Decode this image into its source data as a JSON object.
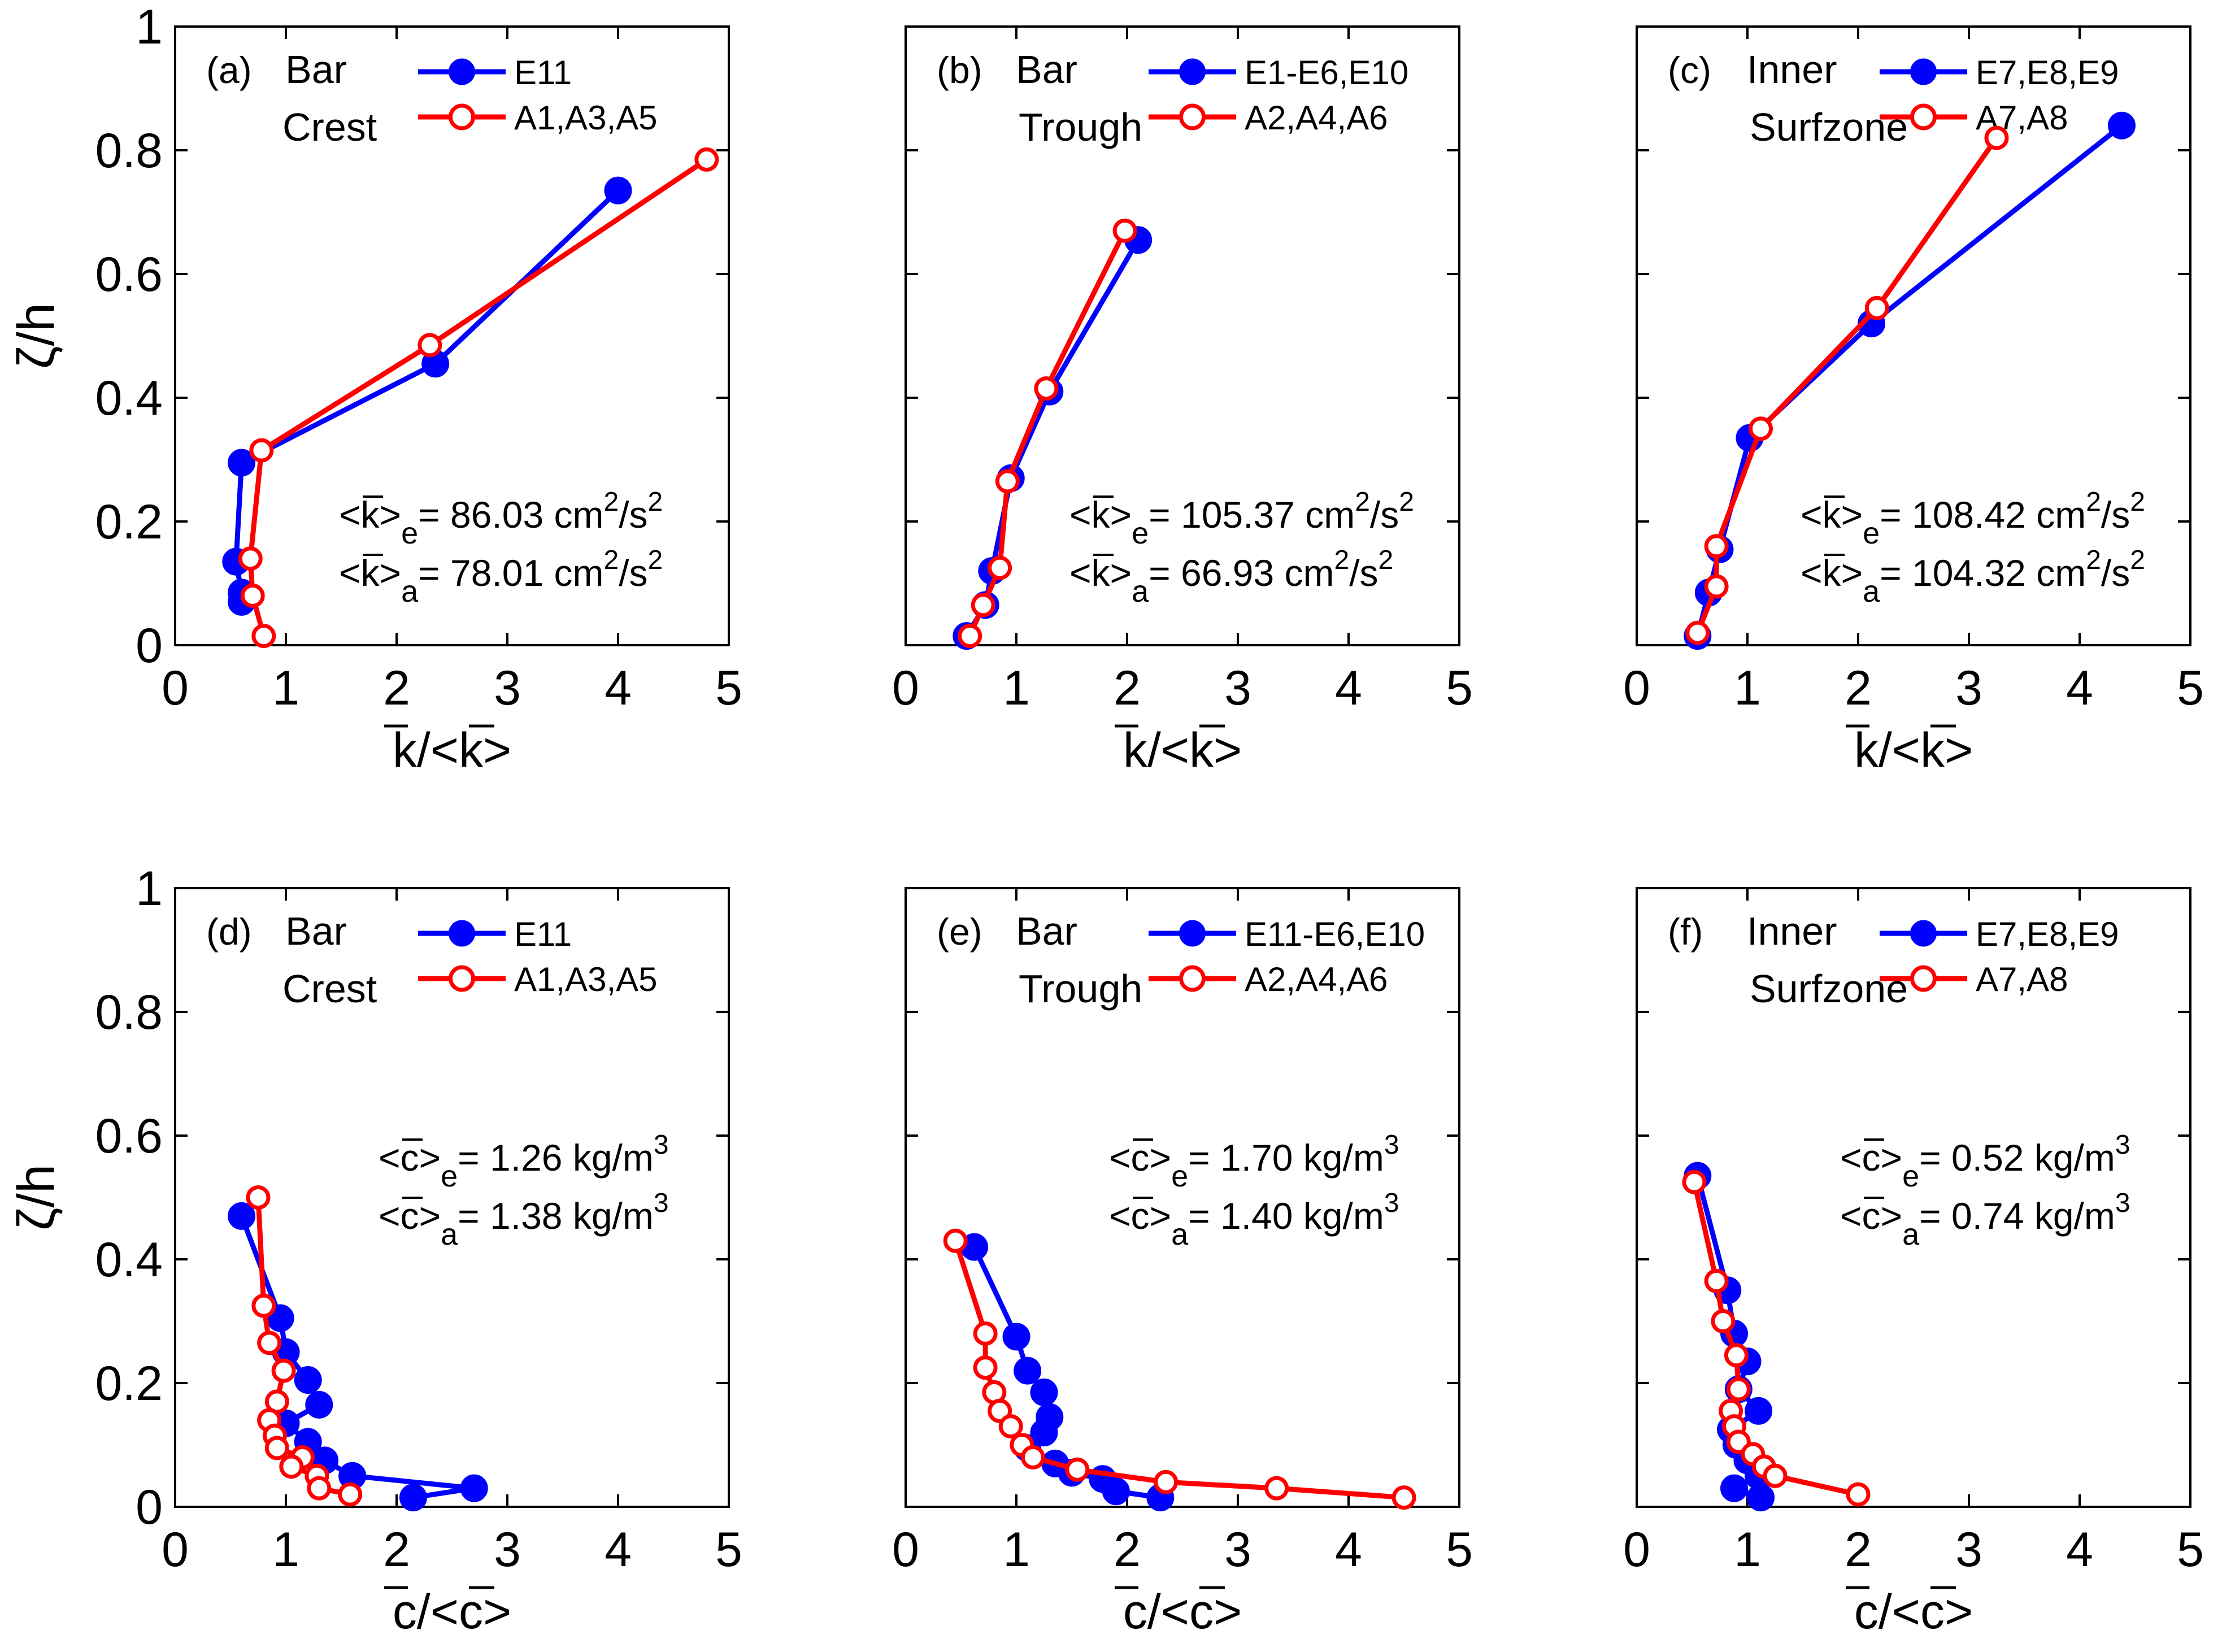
{
  "figure": {
    "colors": {
      "blue": "#0000ff",
      "red": "#ff0000",
      "axis": "#000000"
    },
    "ylabel": "ζ/h"
  },
  "chart_data": [
    {
      "type": "line",
      "panel": "(a)",
      "title_lines": [
        "Bar",
        "Crest"
      ],
      "xlabel": "k/<k>",
      "ylabel": "ζ/h",
      "xlim": [
        0,
        5
      ],
      "ylim": [
        0,
        1
      ],
      "xticks": [
        "0",
        "1",
        "2",
        "3",
        "4",
        "5"
      ],
      "yticks": [
        "0",
        "0.2",
        "0.4",
        "0.6",
        "0.8",
        "1"
      ],
      "legend_position": "top-right",
      "series": [
        {
          "name": "E11",
          "color": "#0000ff",
          "marker": "filled-circle",
          "x": [
            0.6,
            0.6,
            0.55,
            0.6,
            2.35,
            4.0
          ],
          "y": [
            0.07,
            0.085,
            0.135,
            0.295,
            0.455,
            0.735
          ]
        },
        {
          "name": "A1,A3,A5",
          "color": "#ff0000",
          "marker": "open-circle",
          "x": [
            0.8,
            0.7,
            0.68,
            0.78,
            2.3,
            4.8
          ],
          "y": [
            0.015,
            0.08,
            0.14,
            0.315,
            0.485,
            0.785
          ]
        }
      ],
      "annotations": [
        {
          "bar": "k",
          "sub": "e",
          "value": "= 86.03 cm",
          "unit_exp": "2",
          "unit_rest": "/s",
          "unit_exp2": "2"
        },
        {
          "bar": "k",
          "sub": "a",
          "value": "= 78.01 cm",
          "unit_exp": "2",
          "unit_rest": "/s",
          "unit_exp2": "2"
        }
      ]
    },
    {
      "type": "line",
      "panel": "(b)",
      "title_lines": [
        "Bar",
        "Trough"
      ],
      "xlabel": "k/<k>",
      "ylabel": "",
      "xlim": [
        0,
        5
      ],
      "ylim": [
        0,
        1
      ],
      "xticks": [
        "0",
        "1",
        "2",
        "3",
        "4",
        "5"
      ],
      "yticks": [],
      "legend_position": "top-right",
      "series": [
        {
          "name": "E1-E6,E10",
          "color": "#0000ff",
          "marker": "filled-circle",
          "x": [
            0.55,
            0.72,
            0.78,
            0.95,
            1.3,
            2.1
          ],
          "y": [
            0.015,
            0.065,
            0.12,
            0.27,
            0.41,
            0.655
          ]
        },
        {
          "name": "A2,A4,A6",
          "color": "#ff0000",
          "marker": "open-circle",
          "x": [
            0.58,
            0.7,
            0.85,
            0.92,
            1.27,
            1.98
          ],
          "y": [
            0.015,
            0.065,
            0.125,
            0.265,
            0.415,
            0.67
          ]
        }
      ],
      "annotations": [
        {
          "bar": "k",
          "sub": "e",
          "value": "= 105.37 cm",
          "unit_exp": "2",
          "unit_rest": "/s",
          "unit_exp2": "2"
        },
        {
          "bar": "k",
          "sub": "a",
          "value": "= 66.93 cm",
          "unit_exp": "2",
          "unit_rest": "/s",
          "unit_exp2": "2"
        }
      ]
    },
    {
      "type": "line",
      "panel": "(c)",
      "title_lines": [
        "Inner",
        "Surfzone"
      ],
      "xlabel": "k/<k>",
      "ylabel": "",
      "xlim": [
        0,
        5
      ],
      "ylim": [
        0,
        1
      ],
      "xticks": [
        "0",
        "1",
        "2",
        "3",
        "4",
        "5"
      ],
      "yticks": [],
      "legend_position": "top-right",
      "series": [
        {
          "name": "E7,E8,E9",
          "color": "#0000ff",
          "marker": "filled-circle",
          "x": [
            0.55,
            0.65,
            0.75,
            1.02,
            2.12,
            4.38
          ],
          "y": [
            0.015,
            0.085,
            0.155,
            0.335,
            0.52,
            0.84
          ]
        },
        {
          "name": "A7,A8",
          "color": "#ff0000",
          "marker": "open-circle",
          "x": [
            0.55,
            0.72,
            0.72,
            1.12,
            2.17,
            3.25
          ],
          "y": [
            0.02,
            0.095,
            0.16,
            0.35,
            0.545,
            0.82
          ]
        }
      ],
      "annotations": [
        {
          "bar": "k",
          "sub": "e",
          "value": "= 108.42 cm",
          "unit_exp": "2",
          "unit_rest": "/s",
          "unit_exp2": "2"
        },
        {
          "bar": "k",
          "sub": "a",
          "value": "= 104.32 cm",
          "unit_exp": "2",
          "unit_rest": "/s",
          "unit_exp2": "2"
        }
      ]
    },
    {
      "type": "line",
      "panel": "(d)",
      "title_lines": [
        "Bar",
        "Crest"
      ],
      "xlabel": "c/<c>",
      "ylabel": "ζ/h",
      "xlim": [
        0,
        5
      ],
      "ylim": [
        0,
        1
      ],
      "xticks": [
        "0",
        "1",
        "2",
        "3",
        "4",
        "5"
      ],
      "yticks": [
        "0",
        "0.2",
        "0.4",
        "0.6",
        "0.8",
        "1"
      ],
      "legend_position": "top-right",
      "series": [
        {
          "name": "E11",
          "color": "#0000ff",
          "marker": "filled-circle",
          "x": [
            0.6,
            0.95,
            1.0,
            1.2,
            1.3,
            1.0,
            1.2,
            1.35,
            1.6,
            2.7,
            2.15
          ],
          "y": [
            0.47,
            0.305,
            0.25,
            0.205,
            0.165,
            0.135,
            0.105,
            0.075,
            0.05,
            0.03,
            0.015
          ]
        },
        {
          "name": "A1,A3,A5",
          "color": "#ff0000",
          "marker": "open-circle",
          "x": [
            0.75,
            0.8,
            0.85,
            0.98,
            0.92,
            0.85,
            0.9,
            0.92,
            1.15,
            1.05,
            1.28,
            1.3,
            1.58
          ],
          "y": [
            0.5,
            0.325,
            0.265,
            0.22,
            0.17,
            0.14,
            0.115,
            0.095,
            0.08,
            0.065,
            0.05,
            0.03,
            0.02
          ]
        }
      ],
      "annotations": [
        {
          "bar": "c",
          "sub": "e",
          "value": "= 1.26 kg/m",
          "unit_exp": "3",
          "unit_rest": "",
          "unit_exp2": ""
        },
        {
          "bar": "c",
          "sub": "a",
          "value": "= 1.38 kg/m",
          "unit_exp": "3",
          "unit_rest": "",
          "unit_exp2": ""
        }
      ]
    },
    {
      "type": "line",
      "panel": "(e)",
      "title_lines": [
        "Bar",
        "Trough"
      ],
      "xlabel": "c/<c>",
      "ylabel": "",
      "xlim": [
        0,
        5
      ],
      "ylim": [
        0,
        1
      ],
      "xticks": [
        "0",
        "1",
        "2",
        "3",
        "4",
        "5"
      ],
      "yticks": [],
      "legend_position": "top-right",
      "series": [
        {
          "name": "E11-E6,E10",
          "color": "#0000ff",
          "marker": "filled-circle",
          "x": [
            0.62,
            1.0,
            1.1,
            1.25,
            1.3,
            1.25,
            1.1,
            1.35,
            1.5,
            1.78,
            1.9,
            2.3
          ],
          "y": [
            0.42,
            0.275,
            0.22,
            0.185,
            0.145,
            0.12,
            0.095,
            0.07,
            0.055,
            0.045,
            0.025,
            0.015
          ]
        },
        {
          "name": "A2,A4,A6",
          "color": "#ff0000",
          "marker": "open-circle",
          "x": [
            0.45,
            0.72,
            0.72,
            0.8,
            0.85,
            0.95,
            1.05,
            1.15,
            1.55,
            2.35,
            3.35,
            4.5
          ],
          "y": [
            0.43,
            0.28,
            0.225,
            0.185,
            0.155,
            0.13,
            0.1,
            0.08,
            0.06,
            0.04,
            0.03,
            0.015
          ]
        }
      ],
      "annotations": [
        {
          "bar": "c",
          "sub": "e",
          "value": "= 1.70 kg/m",
          "unit_exp": "3",
          "unit_rest": "",
          "unit_exp2": ""
        },
        {
          "bar": "c",
          "sub": "a",
          "value": "= 1.40 kg/m",
          "unit_exp": "3",
          "unit_rest": "",
          "unit_exp2": ""
        }
      ]
    },
    {
      "type": "line",
      "panel": "(f)",
      "title_lines": [
        "Inner",
        "Surfzone"
      ],
      "xlabel": "c/<c>",
      "ylabel": "",
      "xlim": [
        0,
        5
      ],
      "ylim": [
        0,
        1
      ],
      "xticks": [
        "0",
        "1",
        "2",
        "3",
        "4",
        "5"
      ],
      "yticks": [],
      "legend_position": "top-right",
      "series": [
        {
          "name": "E7,E8,E9",
          "color": "#0000ff",
          "marker": "filled-circle",
          "x": [
            0.55,
            0.82,
            0.88,
            1.0,
            0.92,
            1.1,
            0.85,
            0.9,
            1.0,
            1.1,
            0.88,
            1.12
          ],
          "y": [
            0.535,
            0.35,
            0.28,
            0.235,
            0.19,
            0.155,
            0.125,
            0.1,
            0.075,
            0.05,
            0.03,
            0.015
          ]
        },
        {
          "name": "A7,A8",
          "color": "#ff0000",
          "marker": "open-circle",
          "x": [
            0.52,
            0.72,
            0.78,
            0.9,
            0.92,
            0.85,
            0.88,
            0.92,
            1.05,
            1.15,
            1.25,
            2.0
          ],
          "y": [
            0.525,
            0.365,
            0.3,
            0.245,
            0.19,
            0.155,
            0.13,
            0.105,
            0.085,
            0.065,
            0.05,
            0.02
          ]
        }
      ],
      "annotations": [
        {
          "bar": "c",
          "sub": "e",
          "value": "= 0.52 kg/m",
          "unit_exp": "3",
          "unit_rest": "",
          "unit_exp2": ""
        },
        {
          "bar": "c",
          "sub": "a",
          "value": "= 0.74 kg/m",
          "unit_exp": "3",
          "unit_rest": "",
          "unit_exp2": ""
        }
      ]
    }
  ]
}
